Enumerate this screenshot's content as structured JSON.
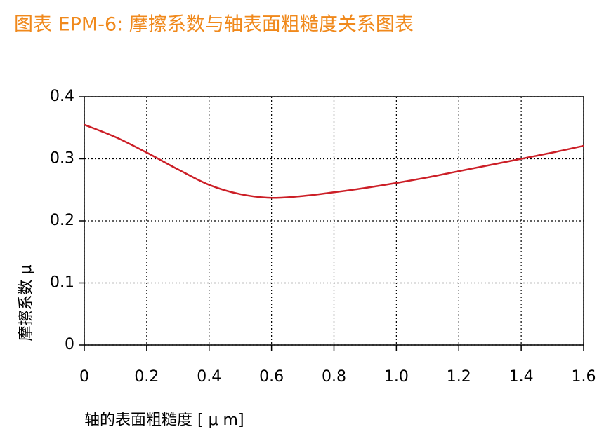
{
  "chart_data": {
    "type": "line",
    "title": "图表 EPM-6: 摩擦系数与轴表面粗糙度关系图表",
    "x_label": "轴的表面粗糙度 [ μ m]",
    "y_label": "摩擦系数 μ",
    "x": [
      0,
      0.1,
      0.2,
      0.3,
      0.4,
      0.5,
      0.6,
      0.7,
      0.8,
      0.9,
      1.0,
      1.1,
      1.2,
      1.3,
      1.4,
      1.5,
      1.6
    ],
    "series": [
      {
        "color": "#cc1f27",
        "values": [
          0.355,
          0.335,
          0.31,
          0.283,
          0.258,
          0.243,
          0.237,
          0.24,
          0.246,
          0.253,
          0.261,
          0.27,
          0.28,
          0.29,
          0.3,
          0.31,
          0.321
        ]
      }
    ],
    "xlim": [
      0,
      1.6
    ],
    "xticks": [
      0,
      0.2,
      0.4,
      0.6,
      0.8,
      {
        "value": 1,
        "label": "1.0"
      },
      1.2,
      1.4,
      1.6
    ],
    "ylim": [
      0,
      0.4
    ],
    "yticks": [
      0,
      0.1,
      0.2,
      0.3,
      0.4
    ],
    "grid": true
  }
}
